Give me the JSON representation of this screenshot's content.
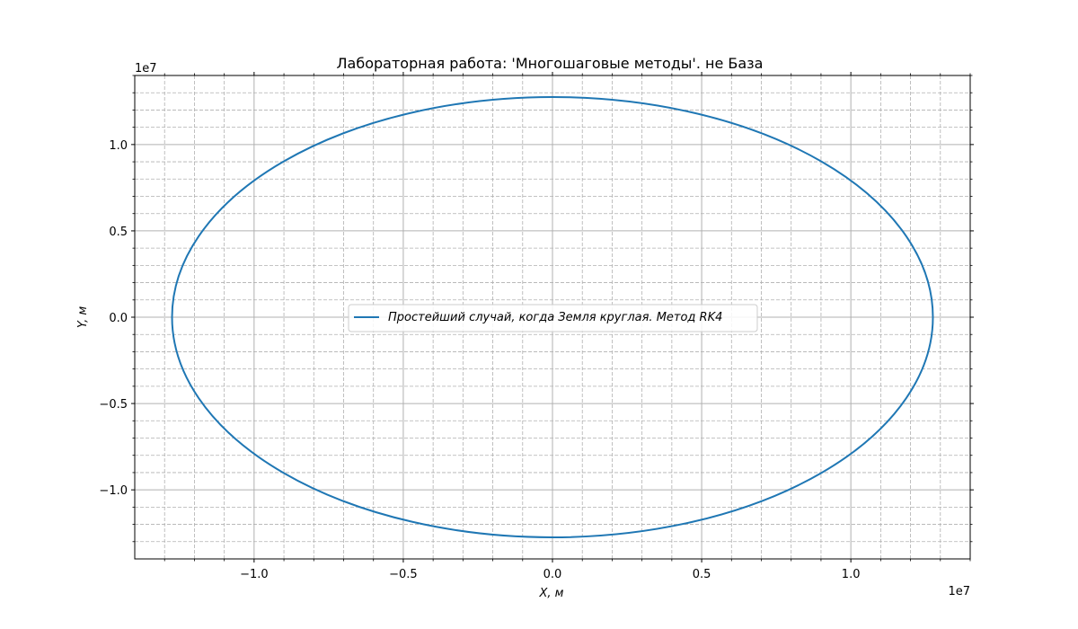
{
  "chart_data": {
    "type": "line",
    "title": "Лабораторная работа: 'Многошаговые методы'. не База",
    "xlabel": "X, м",
    "ylabel": "Y, м",
    "x_offset_label": "1e7",
    "y_offset_label": "1e7",
    "xlim": [
      -1.4,
      1.4
    ],
    "ylim": [
      -1.4,
      1.4
    ],
    "x_ticks": [
      -1.0,
      -0.5,
      0.0,
      0.5,
      1.0
    ],
    "x_tick_labels": [
      "−1.0",
      "−0.5",
      "0.0",
      "0.5",
      "1.0"
    ],
    "y_ticks": [
      -1.0,
      -0.5,
      0.0,
      0.5,
      1.0
    ],
    "y_tick_labels": [
      "−1.0",
      "−0.5",
      "0.0",
      "0.5",
      "1.0"
    ],
    "minor_step": 0.1,
    "grid": true,
    "minor_grid": true,
    "legend_position": "center",
    "series": [
      {
        "name": "Простейший случай, когда Земля круглая. Метод RK4",
        "color": "#1f77b4",
        "shape": "ellipse",
        "center": [
          0.0,
          0.0
        ],
        "radius_x": 1.275,
        "radius_y": 1.275
      }
    ]
  }
}
